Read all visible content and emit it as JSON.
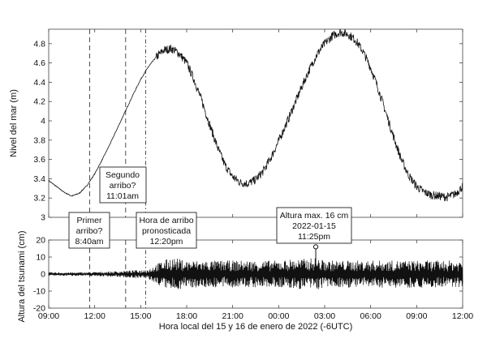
{
  "chart_data": [
    {
      "type": "line",
      "ylabel": "Nivel del mar (m)",
      "ylim": [
        3.0,
        4.95
      ],
      "yticks": [
        "3",
        "3.2",
        "3.4",
        "3.6",
        "3.8",
        "4",
        "4.2",
        "4.4",
        "4.6",
        "4.8"
      ],
      "grid": false,
      "series": [
        {
          "x_hours": [
            9,
            9.5,
            10,
            10.5,
            11,
            11.5,
            12,
            12.5,
            13,
            13.5,
            14,
            14.5,
            15,
            15.5,
            16,
            16.5,
            17,
            17.5,
            18,
            18.5,
            19,
            19.5,
            20,
            20.5,
            21,
            21.5,
            22,
            22.5,
            23,
            23.5,
            24,
            24.5,
            25,
            25.5,
            26,
            26.5,
            27,
            27.5,
            28,
            28.5,
            29,
            29.5,
            30,
            30.5,
            31,
            31.5,
            32,
            32.5,
            33,
            33.5,
            34,
            34.5,
            35,
            35.5,
            36
          ],
          "values": [
            3.38,
            3.32,
            3.26,
            3.22,
            3.25,
            3.33,
            3.45,
            3.6,
            3.76,
            3.93,
            4.1,
            4.27,
            4.43,
            4.56,
            4.66,
            4.73,
            4.75,
            4.7,
            4.6,
            4.42,
            4.2,
            3.96,
            3.73,
            3.54,
            3.42,
            3.36,
            3.35,
            3.39,
            3.48,
            3.62,
            3.79,
            3.97,
            4.16,
            4.35,
            4.53,
            4.69,
            4.8,
            4.88,
            4.92,
            4.9,
            4.84,
            4.72,
            4.55,
            4.33,
            4.08,
            3.83,
            3.6,
            3.43,
            3.32,
            3.26,
            3.23,
            3.22,
            3.21,
            3.24,
            3.32
          ]
        }
      ]
    },
    {
      "type": "line",
      "ylabel": "Altura del tsunami (cm)",
      "xlabel": "Hora local del 15 y 16 de enero de 2022 (-6UTC)",
      "ylim": [
        -20,
        20
      ],
      "yticks": [
        "-20",
        "-10",
        "0",
        "10",
        "20"
      ],
      "xlim_hours": [
        9,
        36
      ],
      "xticks": [
        "09:00",
        "12:00",
        "15:00",
        "18:00",
        "21:00",
        "00:00",
        "03:00",
        "06:00",
        "09:00",
        "12:00"
      ],
      "grid": false,
      "series": [
        {
          "x_hours": [
            9,
            10,
            11,
            12,
            13,
            14,
            15,
            15.5,
            16,
            16.5,
            17,
            17.5,
            18,
            19,
            20,
            21,
            22,
            23,
            24,
            25,
            26,
            26.3,
            27,
            28,
            29,
            30,
            31,
            32,
            33,
            34,
            35,
            36
          ],
          "envelope_cm": [
            1,
            1,
            1,
            1.2,
            1.5,
            2,
            2.5,
            3,
            6,
            8,
            10,
            9,
            8,
            8,
            8,
            8,
            8,
            8,
            8,
            9,
            9,
            10,
            8,
            8,
            8,
            8,
            8,
            8,
            8,
            8,
            8,
            8
          ]
        }
      ],
      "peak": {
        "x_hours": 26.42,
        "value": 16
      }
    }
  ],
  "annotations": {
    "primer": [
      "Primer",
      "arribo?",
      "8:40am"
    ],
    "segundo": [
      "Segundo",
      "arribo?",
      "11:01am"
    ],
    "pronostico": [
      "Hora de arribo",
      "pronosticada",
      "12:20pm"
    ],
    "maximo": [
      "Altura max. 16 cm",
      "2022-01-15",
      "11:25pm"
    ]
  },
  "arrival_lines_hours": [
    11.67,
    14.02,
    15.33
  ],
  "colors": {
    "line": "#111111",
    "frame": "#444444",
    "box_border": "#222222"
  }
}
